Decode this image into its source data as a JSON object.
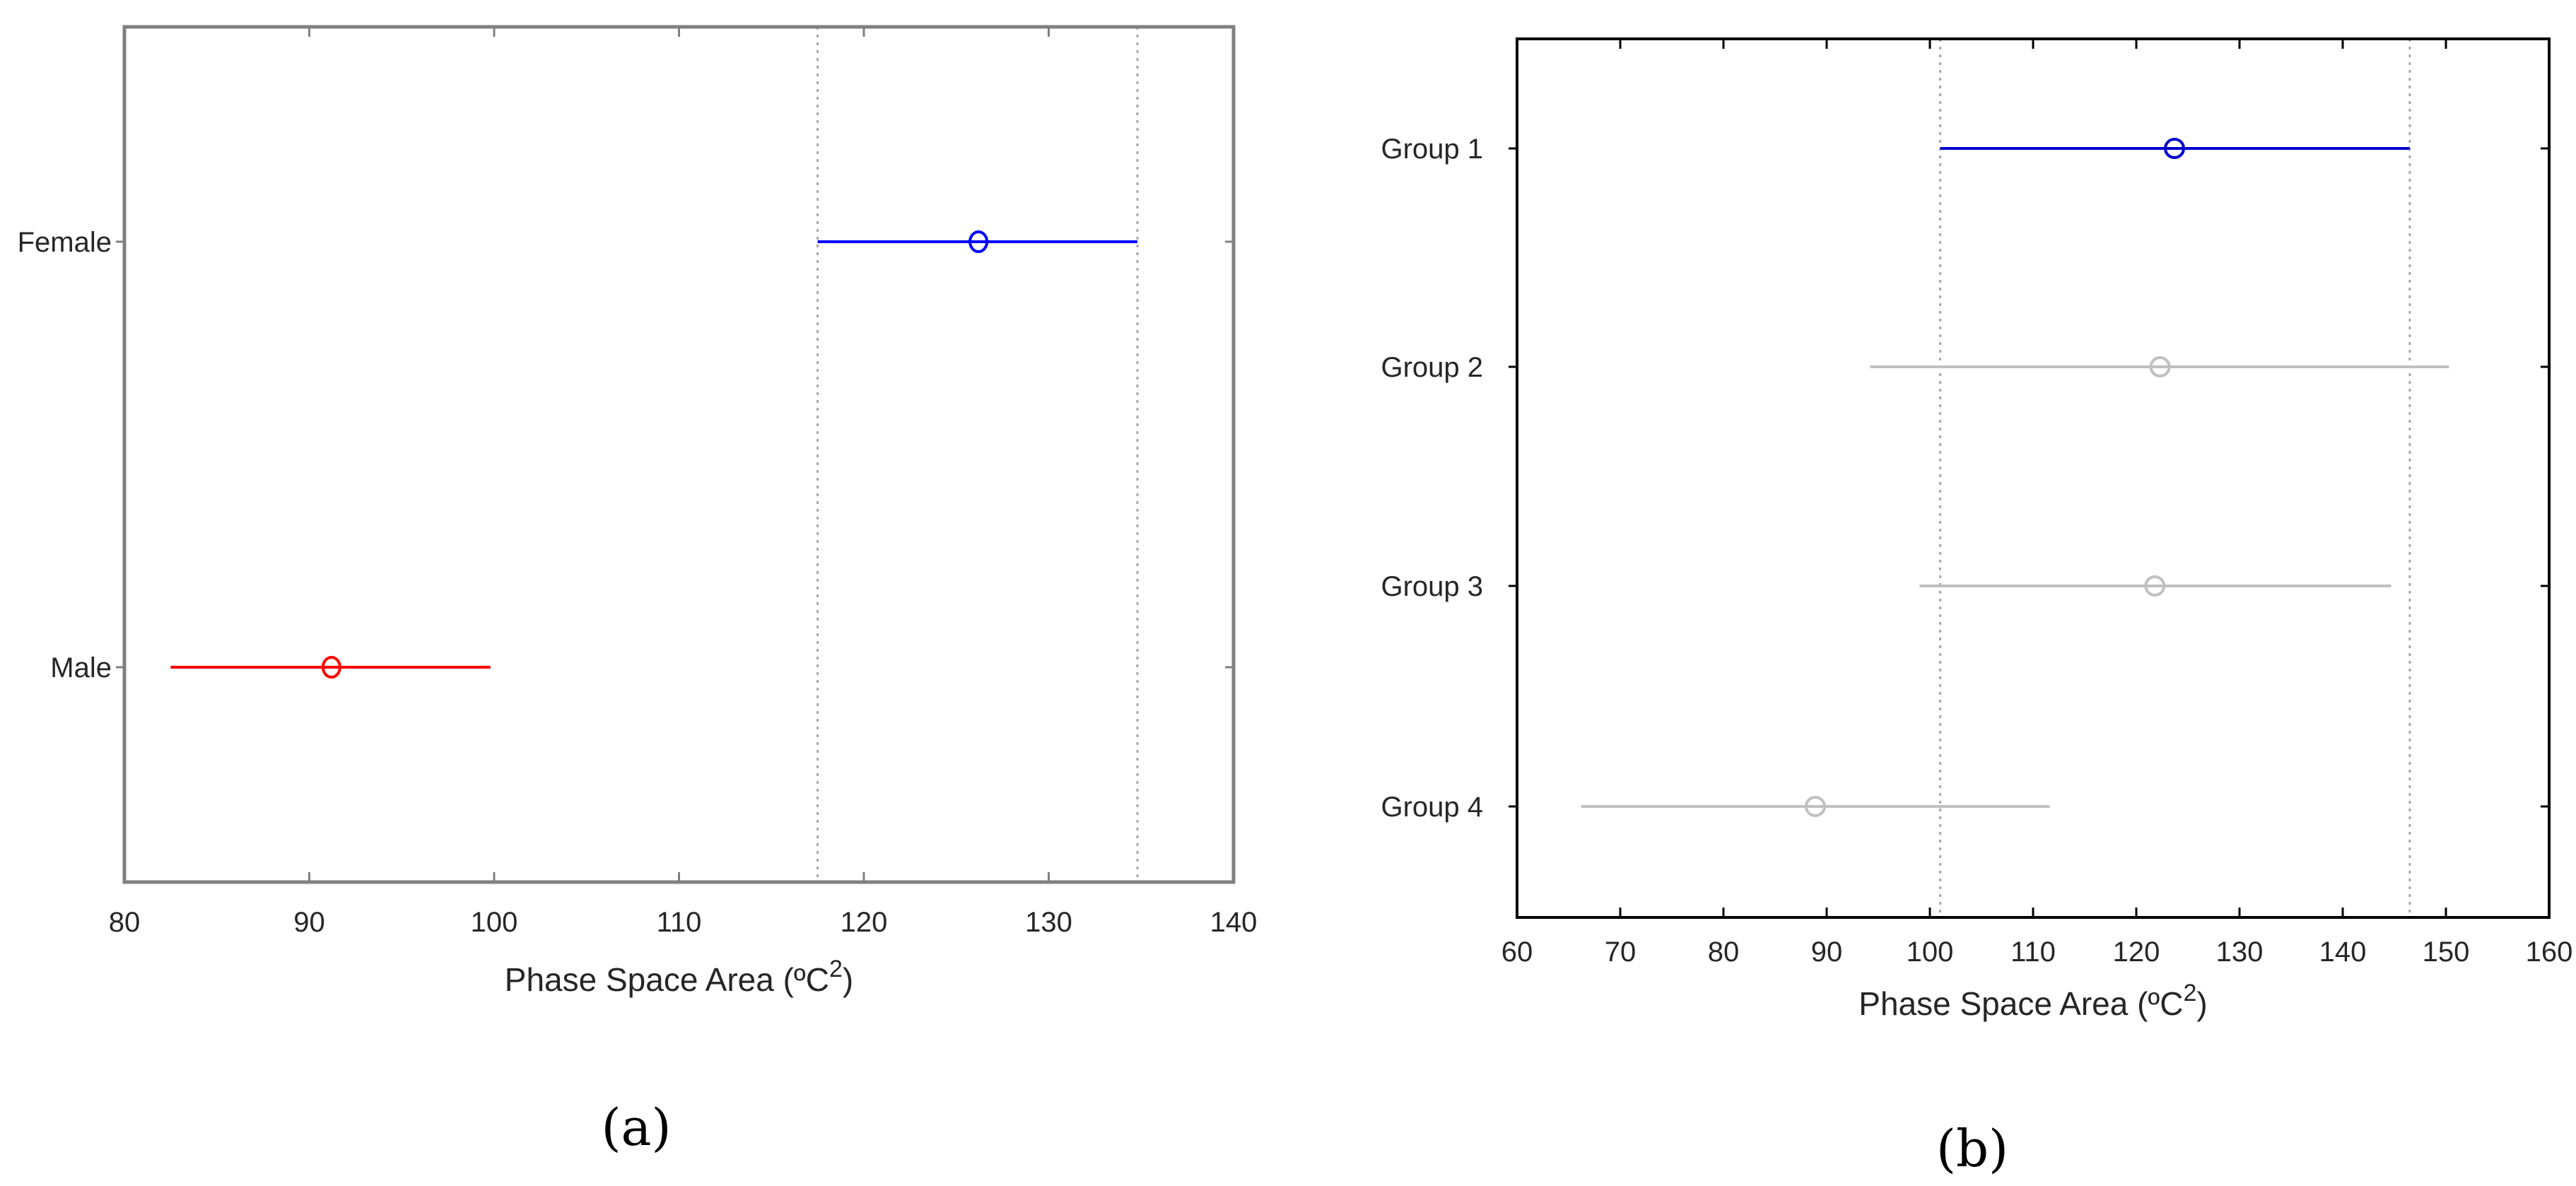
{
  "chart_data": [
    {
      "type": "interval",
      "panel_label": "(a)",
      "xlabel": "Phase Space Area (ºC",
      "xlabel_sup": "2",
      "xlabel_end": ")",
      "xlim": [
        80,
        140
      ],
      "xticks": [
        80,
        90,
        100,
        110,
        120,
        130,
        140
      ],
      "categories": [
        "Female",
        "Male"
      ],
      "comparison_lines": [
        117.5,
        134.8
      ],
      "series": [
        {
          "category": "Female",
          "mean": 126.2,
          "low": 117.5,
          "high": 134.8,
          "color": "#0000ff"
        },
        {
          "category": "Male",
          "mean": 91.2,
          "low": 82.5,
          "high": 99.8,
          "color": "#ff0000"
        }
      ]
    },
    {
      "type": "interval",
      "panel_label": "(b)",
      "xlabel": "Phase Space Area (ºC",
      "xlabel_sup": "2",
      "xlabel_end": ")",
      "xlim": [
        60,
        160
      ],
      "xticks": [
        60,
        70,
        80,
        90,
        100,
        110,
        120,
        130,
        140,
        150,
        160
      ],
      "categories": [
        "Group 1",
        "Group 2",
        "Group 3",
        "Group 4"
      ],
      "comparison_lines": [
        101.0,
        146.5
      ],
      "series": [
        {
          "category": "Group 1",
          "mean": 123.7,
          "low": 101.0,
          "high": 146.5,
          "color": "#0000cc"
        },
        {
          "category": "Group 2",
          "mean": 122.3,
          "low": 94.2,
          "high": 150.3,
          "color": "#c0c0c0"
        },
        {
          "category": "Group 3",
          "mean": 121.8,
          "low": 99.0,
          "high": 144.7,
          "color": "#c0c0c0"
        },
        {
          "category": "Group 4",
          "mean": 88.9,
          "low": 66.2,
          "high": 111.6,
          "color": "#c0c0c0"
        }
      ]
    }
  ]
}
